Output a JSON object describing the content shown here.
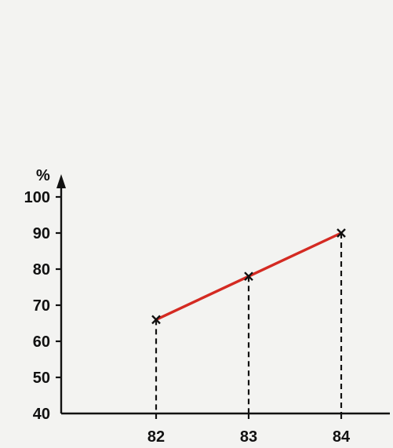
{
  "chart_data": {
    "type": "line",
    "title": "",
    "xlabel": "",
    "ylabel": "%",
    "categories": [
      "82",
      "83",
      "84"
    ],
    "x": [
      82,
      83,
      84
    ],
    "series": [
      {
        "values": [
          66,
          78,
          90
        ]
      }
    ],
    "ylim": [
      40,
      105
    ],
    "yticks": [
      40,
      50,
      60,
      70,
      80,
      90,
      100
    ],
    "ytick_labels": [
      "40",
      "50",
      "60",
      "70",
      "80",
      "90",
      "100"
    ],
    "xtick_labels": [
      "82",
      "83",
      "84"
    ],
    "grid": false,
    "drop_lines": true,
    "marker": "x",
    "colors": {
      "line": "#d42a22",
      "axis": "#111111",
      "dropline": "#111111"
    }
  }
}
